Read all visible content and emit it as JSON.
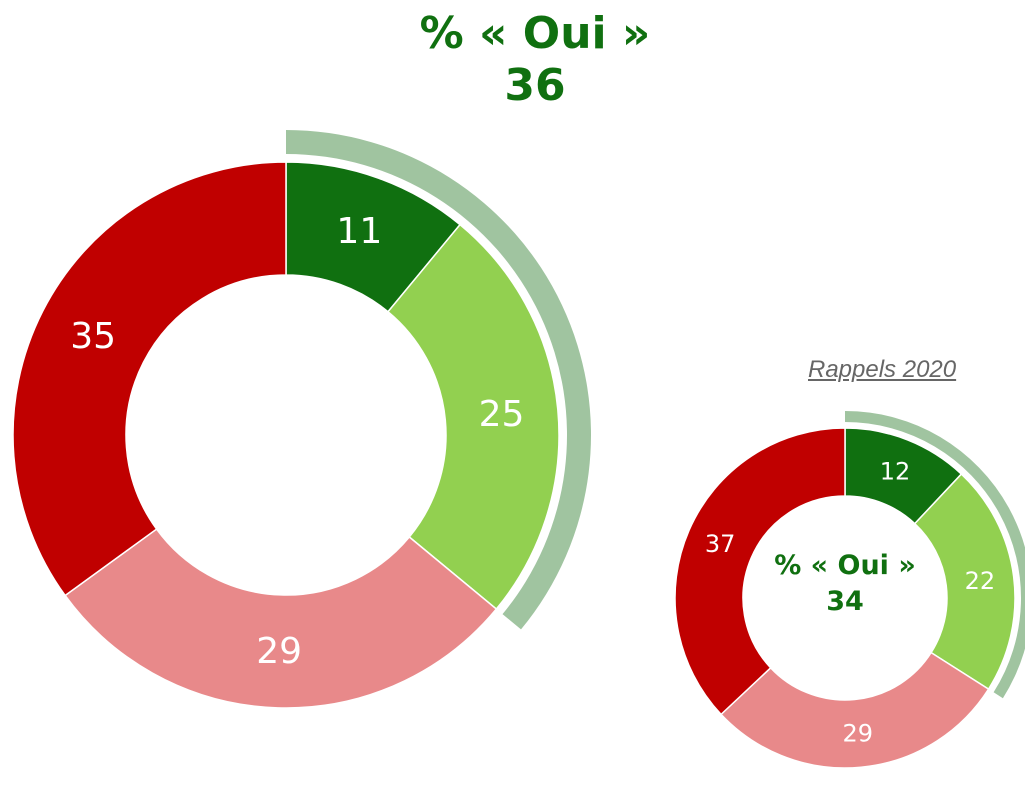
{
  "chart_data": [
    {
      "type": "donut",
      "title": "% « Oui »",
      "title_value": 36,
      "categories": [
        null,
        null,
        null,
        null
      ],
      "values": [
        11,
        25,
        29,
        35
      ],
      "colors": [
        "#107010",
        "#92d050",
        "#e8898a",
        "#c00000"
      ],
      "highlight_color": "#a0c4a0"
    },
    {
      "type": "donut",
      "annotation": "Rappels 2020",
      "title": "% « Oui »",
      "title_value": 34,
      "categories": [
        null,
        null,
        null,
        null
      ],
      "values": [
        12,
        22,
        29,
        37
      ],
      "colors": [
        "#107010",
        "#92d050",
        "#e8898a",
        "#c00000"
      ],
      "highlight_color": "#a0c4a0"
    }
  ]
}
